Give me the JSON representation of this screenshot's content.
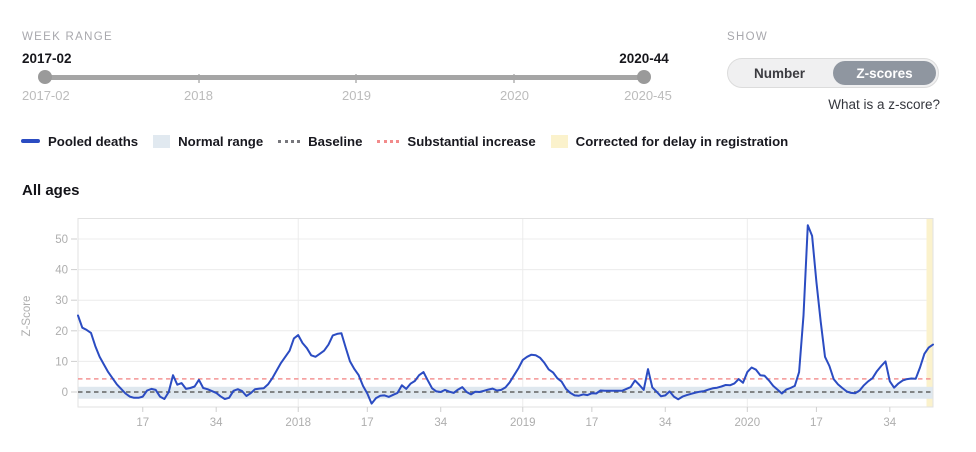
{
  "week_range": {
    "label": "WEEK RANGE",
    "start_value": "2017-02",
    "end_value": "2020-44",
    "scale_labels": [
      "2017-02",
      "2018",
      "2019",
      "2020",
      "2020-45"
    ]
  },
  "show": {
    "label": "SHOW",
    "options": [
      "Number",
      "Z-scores"
    ],
    "selected": "Z-scores",
    "selected_bg": "#8f96a0",
    "help_link": "What is a z-score?"
  },
  "legend": [
    {
      "label": "Pooled deaths",
      "type": "line",
      "color": "#2b4cc2"
    },
    {
      "label": "Normal range",
      "type": "rect",
      "color": "#e1e9f0"
    },
    {
      "label": "Baseline",
      "type": "dotted",
      "color": "#77777c"
    },
    {
      "label": "Substantial increase",
      "type": "dotted",
      "color": "#f28b8b"
    },
    {
      "label": "Corrected for delay in registration",
      "type": "rect",
      "color": "#fbf2cc"
    }
  ],
  "chart": {
    "title": "All ages"
  },
  "chart_data": {
    "type": "line",
    "title": "All ages",
    "ylabel": "Z-Score",
    "x_range": [
      "2017-02",
      "2020-45"
    ],
    "x_unit": "ISO week",
    "y_ticks": [
      0,
      10,
      20,
      30,
      40,
      50
    ],
    "ylim": [
      -4.9,
      56.5
    ],
    "grid": true,
    "grid_color": "#ececec",
    "axis_text_color": "#aeaeae",
    "x_ticks": [
      {
        "label": "17",
        "i": 15
      },
      {
        "label": "34",
        "i": 32
      },
      {
        "label": "2018",
        "i": 51
      },
      {
        "label": "17",
        "i": 67
      },
      {
        "label": "34",
        "i": 84
      },
      {
        "label": "2019",
        "i": 103
      },
      {
        "label": "17",
        "i": 119
      },
      {
        "label": "34",
        "i": 136
      },
      {
        "label": "2020",
        "i": 155
      },
      {
        "label": "17",
        "i": 171
      },
      {
        "label": "34",
        "i": 188
      }
    ],
    "year_gridline_indices": [
      51,
      103,
      155
    ],
    "baseline": {
      "y": 0,
      "color": "#626262"
    },
    "substantial_increase": {
      "y": 4.3,
      "color": "#f49494"
    },
    "normal_range": {
      "from": -2.2,
      "to": 1.7,
      "color": "#dfe8ef"
    },
    "corrected_band": {
      "from_index": 196.5,
      "color": "#fbf2cc"
    },
    "series": [
      {
        "name": "Pooled deaths",
        "color": "#2b4cc2",
        "first_week": "2017-02",
        "values": [
          25,
          21,
          20.3,
          19.3,
          15,
          11.5,
          9,
          6.5,
          4.5,
          2.5,
          1,
          -0.5,
          -1.5,
          -1.9,
          -1.9,
          -1.5,
          0.5,
          1,
          0.7,
          -1.5,
          -2.3,
          0,
          5.5,
          2.4,
          2.9,
          1,
          1.3,
          1.8,
          4,
          1.3,
          0.9,
          0.3,
          -0.3,
          -1.4,
          -2.3,
          -1.9,
          0.4,
          0.9,
          0.3,
          -1.3,
          -0.4,
          0.9,
          1.1,
          1.2,
          2.5,
          4.5,
          7,
          9.5,
          11.5,
          13.5,
          17.5,
          18.6,
          16,
          14.3,
          12,
          11.5,
          12.5,
          13.5,
          15.5,
          18.5,
          19,
          19.2,
          14.5,
          10,
          7.5,
          5.5,
          2,
          -0.5,
          -3.8,
          -2,
          -1.2,
          -1.1,
          -1.6,
          -0.9,
          -0.3,
          2.2,
          1,
          2.7,
          3.6,
          5.5,
          6.5,
          3.8,
          1.2,
          0.2,
          0,
          0.7,
          0.1,
          -0.3,
          0.8,
          1.6,
          0,
          -0.8,
          0.1,
          0,
          0.4,
          0.8,
          1.1,
          0.5,
          0.7,
          1.5,
          3.2,
          5.5,
          7.8,
          10.5,
          11.5,
          12.2,
          12,
          11.2,
          9.5,
          7.4,
          6.4,
          4.5,
          3.4,
          1,
          -0.3,
          -1.1,
          -1.2,
          -0.8,
          -1,
          -0.4,
          -0.5,
          0.5,
          0.4,
          0.4,
          0.4,
          0.4,
          0.4,
          1,
          1.6,
          3.8,
          2.3,
          0.7,
          7.5,
          1.5,
          0.1,
          -1.4,
          -1.1,
          0.2,
          -1.5,
          -2.4,
          -1.5,
          -1,
          -0.6,
          -0.2,
          0.1,
          0.3,
          0.8,
          1.2,
          1.4,
          1.8,
          2.3,
          2.2,
          2.8,
          4.2,
          3,
          6.5,
          8,
          7.3,
          5.5,
          5.3,
          3.8,
          2,
          0.8,
          -0.5,
          0.8,
          1.3,
          2,
          6.5,
          25,
          54.5,
          51,
          36,
          23,
          11.5,
          8.5,
          4.2,
          2.5,
          1.3,
          0.2,
          -0.3,
          -0.4,
          0.5,
          2.2,
          3.5,
          4.5,
          6.8,
          8.5,
          10,
          3.5,
          1.4,
          2.8,
          3.8,
          4.2,
          4.4,
          4.3,
          8,
          12.5,
          14.5,
          15.5
        ]
      }
    ]
  }
}
